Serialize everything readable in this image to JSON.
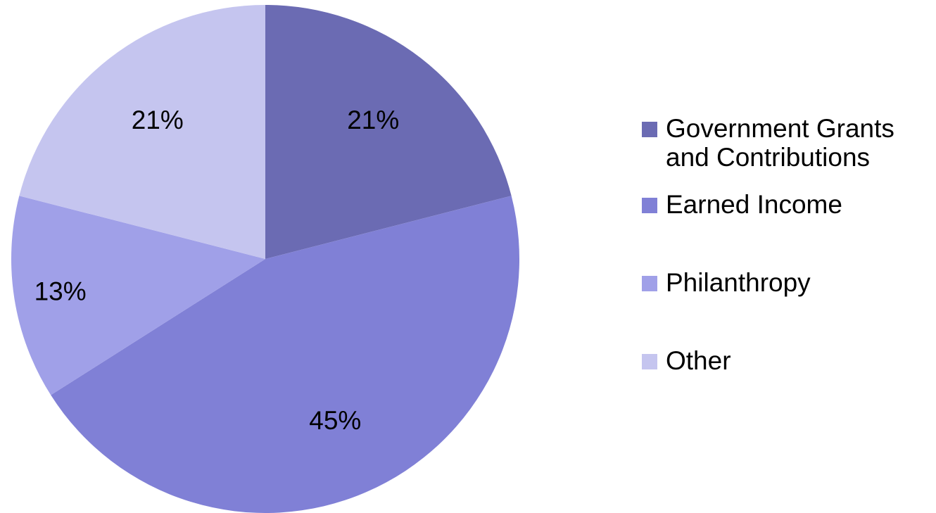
{
  "chart_data": {
    "type": "pie",
    "categories": [
      "Government Grants and Contributions",
      "Earned Income",
      "Philanthropy",
      "Other"
    ],
    "values": [
      21,
      45,
      13,
      21
    ],
    "value_labels": [
      "21%",
      "45%",
      "13%",
      "21%"
    ],
    "colors": [
      "#6b6bb3",
      "#8080d6",
      "#a0a0e8",
      "#c5c5ef"
    ],
    "start_angle": "12 o'clock",
    "direction": "clockwise",
    "legend": "right"
  }
}
